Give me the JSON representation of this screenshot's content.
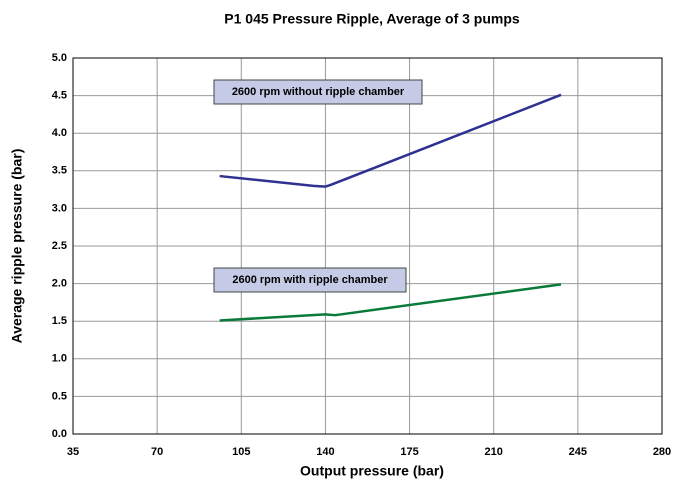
{
  "chart_data": {
    "type": "line",
    "title": "P1 045 Pressure Ripple, Average of 3 pumps",
    "x_label": "Output pressure (bar)",
    "y_label": "Average ripple pressure (bar)",
    "series": [
      {
        "name": "2600 rpm without ripple chamber",
        "color": "#2e3192",
        "x": [
          96,
          135,
          140,
          142,
          238
        ],
        "values": [
          3.43,
          3.3,
          3.29,
          3.31,
          4.51
        ]
      },
      {
        "name": "2600 rpm with ripple chamber",
        "color": "#0a7a3a",
        "x": [
          96,
          140,
          144,
          238
        ],
        "values": [
          1.51,
          1.59,
          1.58,
          1.99
        ]
      }
    ],
    "xlim": [
      35,
      280
    ],
    "xticks": [
      35,
      70,
      105,
      140,
      175,
      210,
      245,
      280
    ],
    "ylim": [
      0,
      5
    ],
    "yticks": [
      {
        "value": 0,
        "label": "0.0"
      },
      {
        "value": 0.5,
        "label": "0.5"
      },
      {
        "value": 1,
        "label": "1.0"
      },
      {
        "value": 1.5,
        "label": "1.5"
      },
      {
        "value": 2,
        "label": "2.0"
      },
      {
        "value": 2.5,
        "label": "2.5"
      },
      {
        "value": 3,
        "label": "3.0"
      },
      {
        "value": 3.5,
        "label": "3.5"
      },
      {
        "value": 4,
        "label": "4.0"
      },
      {
        "value": 4.5,
        "label": "4.5"
      },
      {
        "value": 5,
        "label": "5.0"
      }
    ],
    "grid": true
  }
}
